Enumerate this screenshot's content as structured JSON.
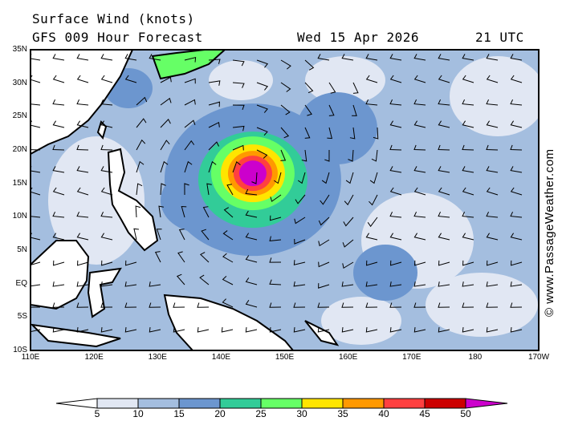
{
  "header": {
    "title": "Surface Wind (knots)",
    "subtitle": "GFS 009 Hour Forecast",
    "date": "Wed 15 Apr 2026",
    "time": "21 UTC"
  },
  "map": {
    "lat_labels": [
      "35N",
      "30N",
      "25N",
      "20N",
      "15N",
      "10N",
      "5N",
      "EQ",
      "5S",
      "10S"
    ],
    "lon_labels": [
      "110E",
      "120E",
      "130E",
      "140E",
      "150E",
      "160E",
      "170E",
      "180",
      "170W"
    ],
    "storm_center": {
      "lon": 145,
      "lat": 16.5
    },
    "copyright": "© www.PassageWeather.com"
  },
  "legend": {
    "labels": [
      "5",
      "10",
      "15",
      "20",
      "25",
      "30",
      "35",
      "40",
      "45",
      "50"
    ],
    "colors": [
      "#e1e7f3",
      "#a4bedf",
      "#6c96cf",
      "#32cc98",
      "#66ff66",
      "#ffe500",
      "#ff9900",
      "#ff4040",
      "#cc0000",
      "#cc00cc"
    ],
    "below_color": "#ffffff"
  }
}
